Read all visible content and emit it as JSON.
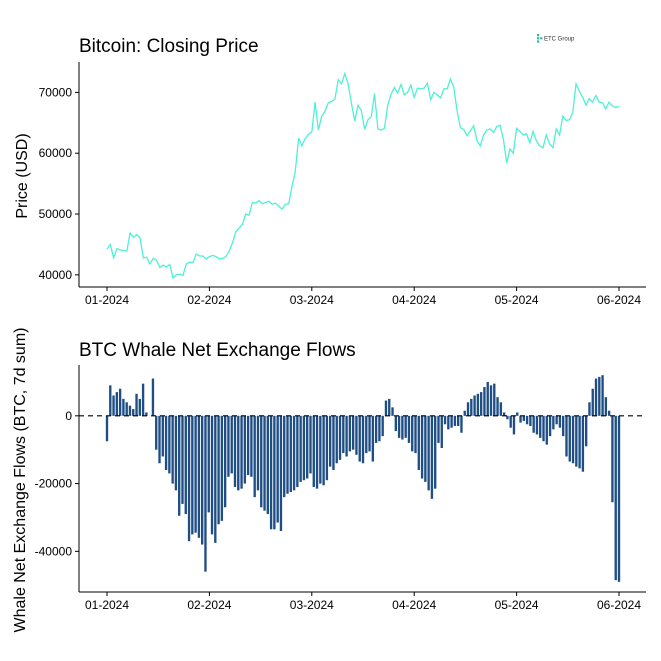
{
  "brand": {
    "logo_text": "ETC Group",
    "logo_color": "#2bb5a0"
  },
  "chart_data": [
    {
      "type": "line",
      "title": "Bitcoin: Closing Price",
      "xlabel": "",
      "ylabel": "Price (USD)",
      "color": "#4ef0d6",
      "x_start": "2024-01-01",
      "x_end": "2024-06-01",
      "xticks": [
        "01-2024",
        "02-2024",
        "03-2024",
        "04-2024",
        "05-2024",
        "06-2024"
      ],
      "yticks": [
        40000,
        50000,
        60000,
        70000
      ],
      "ylim": [
        38000,
        75000
      ],
      "values": [
        44200,
        45000,
        42800,
        44300,
        44100,
        44000,
        43900,
        46900,
        46200,
        46600,
        46100,
        42800,
        42900,
        41800,
        42700,
        42400,
        41200,
        41600,
        41300,
        41700,
        39500,
        40000,
        40100,
        39900,
        41800,
        42100,
        42000,
        43400,
        43100,
        43100,
        42600,
        43000,
        43200,
        43000,
        42600,
        42700,
        43000,
        43900,
        45300,
        47100,
        47700,
        48300,
        50000,
        49800,
        51900,
        51800,
        52200,
        51700,
        51900,
        52100,
        51600,
        51800,
        51300,
        50800,
        51600,
        51700,
        54500,
        57000,
        62500,
        61200,
        62400,
        63100,
        63500,
        68400,
        63800,
        66100,
        66900,
        68300,
        68500,
        68900,
        72100,
        71400,
        73100,
        71400,
        68200,
        65300,
        67900,
        67000,
        63900,
        65500,
        66000,
        69800,
        64000,
        63800,
        64100,
        67900,
        69700,
        70800,
        69900,
        71300,
        69600,
        70000,
        71200,
        69200,
        70700,
        70600,
        70700,
        71500,
        68800,
        70000,
        69600,
        69100,
        70600,
        70600,
        72200,
        70800,
        66900,
        64200,
        63900,
        62900,
        63700,
        64500,
        62100,
        61200,
        63000,
        63800,
        64000,
        63400,
        64400,
        64600,
        62300,
        58400,
        60700,
        60000,
        64100,
        63600,
        63000,
        63200,
        61700,
        63600,
        62000,
        61200,
        60900,
        63000,
        61500,
        60900,
        64000,
        63000,
        66100,
        65400,
        65500,
        66700,
        71400,
        70200,
        69200,
        67900,
        69000,
        68400,
        69500,
        68400,
        68300,
        67300,
        68400,
        67800,
        67500,
        67700
      ]
    },
    {
      "type": "bar",
      "title": "BTC Whale Net Exchange Flows",
      "xlabel": "",
      "ylabel": "Whale Net Exchange Flows (BTC, 7d sum)",
      "color": "#1f4e85",
      "x_start": "2024-01-01",
      "x_end": "2024-06-01",
      "xticks": [
        "01-2024",
        "02-2024",
        "03-2024",
        "04-2024",
        "05-2024",
        "06-2024"
      ],
      "yticks": [
        -40000,
        -20000,
        0
      ],
      "ylim": [
        -52000,
        15000
      ],
      "reference_line": 0,
      "values": [
        -7500,
        9000,
        6000,
        7000,
        8000,
        5000,
        4000,
        3000,
        2000,
        6500,
        5000,
        9500,
        1000,
        0,
        11000,
        -10000,
        -14000,
        -12000,
        -16000,
        -17000,
        -20000,
        -22000,
        -29500,
        -26000,
        -29000,
        -37000,
        -35000,
        -34500,
        -36000,
        -38000,
        -46000,
        -28500,
        -35000,
        -37500,
        -32000,
        -31000,
        -27000,
        -18000,
        -17000,
        -21000,
        -22000,
        -21500,
        -20000,
        -17500,
        -18000,
        -24000,
        -22000,
        -27000,
        -28000,
        -29000,
        -33500,
        -33500,
        -31500,
        -34000,
        -24000,
        -23000,
        -22500,
        -22000,
        -21000,
        -19500,
        -19000,
        -18500,
        -17000,
        -21000,
        -21500,
        -20000,
        -20500,
        -19000,
        -15000,
        -16000,
        -14000,
        -13000,
        -11000,
        -12000,
        -10500,
        -10000,
        -11500,
        -13500,
        -14000,
        -11000,
        -10500,
        -13500,
        -8000,
        -7500,
        -6000,
        4500,
        5000,
        2500,
        -4500,
        -6500,
        -7000,
        -6500,
        -8000,
        -10500,
        -11000,
        -16000,
        -18500,
        -19500,
        -22000,
        -24500,
        -21500,
        -8000,
        -9500,
        -2500,
        -4000,
        -3500,
        -3000,
        -3000,
        -5000,
        1500,
        4000,
        5000,
        6000,
        6500,
        7000,
        8500,
        10000,
        9000,
        9500,
        5500,
        4000,
        1000,
        -1000,
        -3500,
        -5500,
        1000,
        -2000,
        -1500,
        -2500,
        -3000,
        -5000,
        -5500,
        -6500,
        -7500,
        -8500,
        -6000,
        -4000,
        -2500,
        -3500,
        -6000,
        -12000,
        -13500,
        -14000,
        -15000,
        -15500,
        -16500,
        -9000,
        4000,
        8000,
        11000,
        11500,
        12000,
        5500,
        1500,
        -25500,
        -48500,
        -49000
      ]
    }
  ]
}
